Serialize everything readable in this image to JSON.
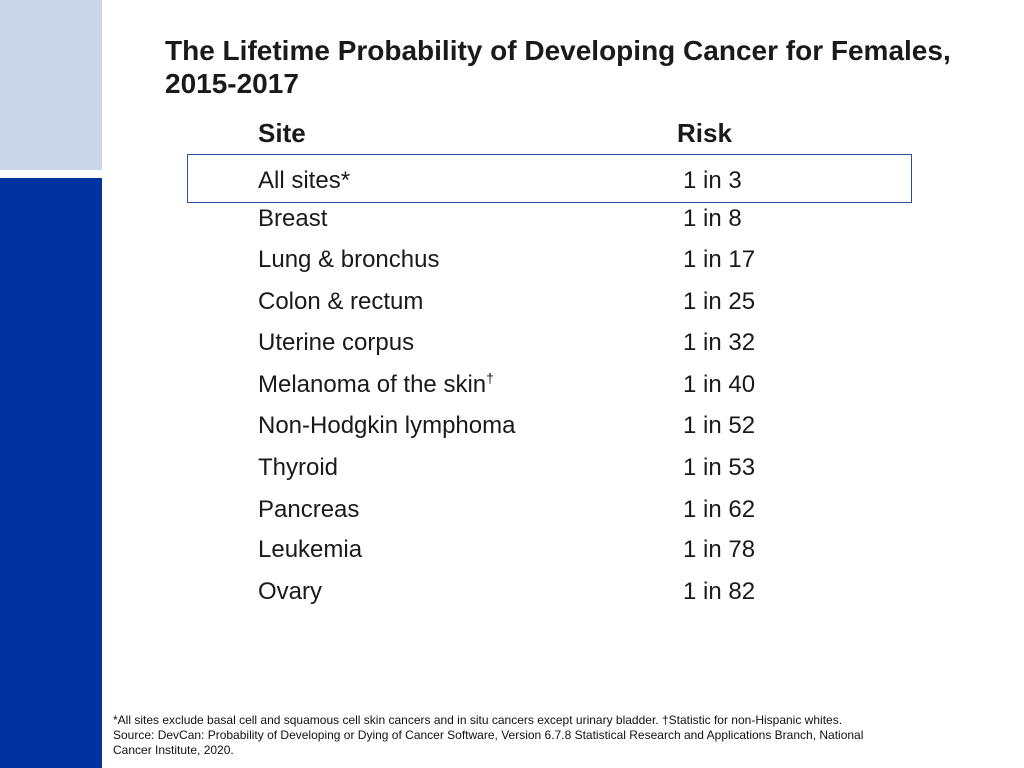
{
  "slide": {
    "title_line1": "The Lifetime Probability of Developing Cancer for Females,",
    "title_line2": "2015-2017"
  },
  "table": {
    "headers": {
      "site": "Site",
      "risk": "Risk"
    },
    "rows": [
      {
        "site": "All sites*",
        "sup": "",
        "risk": "1 in 3"
      },
      {
        "site": "Breast",
        "sup": "",
        "risk": "1 in 8"
      },
      {
        "site": "Lung & bronchus",
        "sup": "",
        "risk": "1 in 17"
      },
      {
        "site": "Colon & rectum",
        "sup": "",
        "risk": "1 in 25"
      },
      {
        "site": "Uterine corpus",
        "sup": "",
        "risk": "1 in 32"
      },
      {
        "site": "Melanoma of the skin",
        "sup": "†",
        "risk": "1 in 40"
      },
      {
        "site": "Non-Hodgkin lymphoma",
        "sup": "",
        "risk": "1 in 52"
      },
      {
        "site": "Thyroid",
        "sup": "",
        "risk": "1 in 53"
      },
      {
        "site": "Pancreas",
        "sup": "",
        "risk": "1 in 62"
      },
      {
        "site": "Leukemia",
        "sup": "",
        "risk": "1 in 78"
      },
      {
        "site": "Ovary",
        "sup": "",
        "risk": "1 in 82"
      }
    ]
  },
  "footnote": {
    "line1": "*All sites exclude basal cell and squamous cell skin cancers and in situ cancers except urinary bladder. †Statistic for non-Hispanic whites.",
    "line2": "Source: DevCan: Probability of Developing or Dying of Cancer Software, Version 6.7.8 Statistical Research and Applications Branch, National",
    "line3": "Cancer Institute, 2020."
  },
  "colors": {
    "accent_dark": "#0033a0",
    "accent_light": "#c9d6ea",
    "highlight_border": "#2c4f9e"
  }
}
